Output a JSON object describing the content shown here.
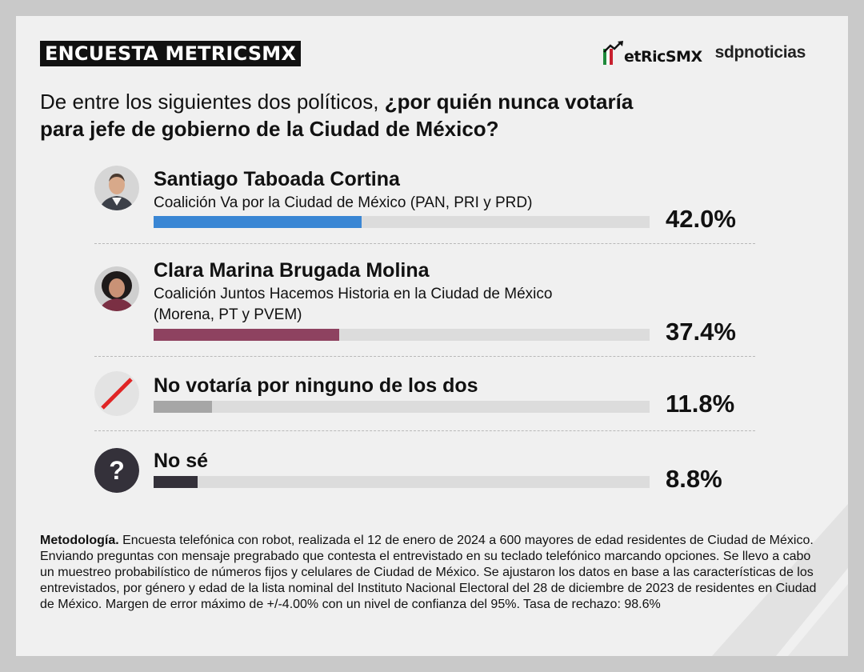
{
  "header": {
    "badge": "ENCUESTA METRICSMX",
    "logo_metrics": "etRicSMX",
    "logo_sdp": "sdpnoticias"
  },
  "question": {
    "plain": "De entre los siguientes dos políticos, ",
    "bold1": "¿por quién nunca votaría",
    "bold2": "para jefe de gobierno de la Ciudad de México?"
  },
  "chart_data": {
    "type": "bar",
    "categories": [
      "Santiago Taboada Cortina",
      "Clara Marina Brugada Molina",
      "No votaría por ninguno de los dos",
      "No sé"
    ],
    "subtitles": [
      [
        "Coalición Va por la Ciudad de México (PAN, PRI y PRD)"
      ],
      [
        "Coalición Juntos Hacemos Historia en la Ciudad de México",
        "(Morena, PT y PVEM)"
      ],
      [],
      []
    ],
    "values": [
      42.0,
      37.4,
      11.8,
      8.8
    ],
    "labels": [
      "42.0%",
      "37.4%",
      "11.8%",
      "8.8%"
    ],
    "colors": [
      "#3a86d4",
      "#8e4260",
      "#a6a6a6",
      "#34313a"
    ],
    "ylim": [
      0,
      100
    ]
  },
  "footer": {
    "method_label": "Metodología.",
    "method_text": " Encuesta telefónica con robot, realizada el 12 de enero de 2024 a 600 mayores de edad residentes de Ciudad de México. Enviando preguntas con mensaje pregrabado que contesta el entrevistado en su teclado telefónico marcando opciones. Se llevo a cabo un muestreo probabilístico de números fijos y celulares de Ciudad de México. Se ajustaron los datos en base a las características de los entrevistados, por género y edad de la lista nominal del Instituto Nacional Electoral del 28 de diciembre de 2023 de residentes en Ciudad de México. Margen de error máximo de +/-4.00% con un nivel de confianza del 95%. Tasa de rechazo: 98.6%"
  }
}
